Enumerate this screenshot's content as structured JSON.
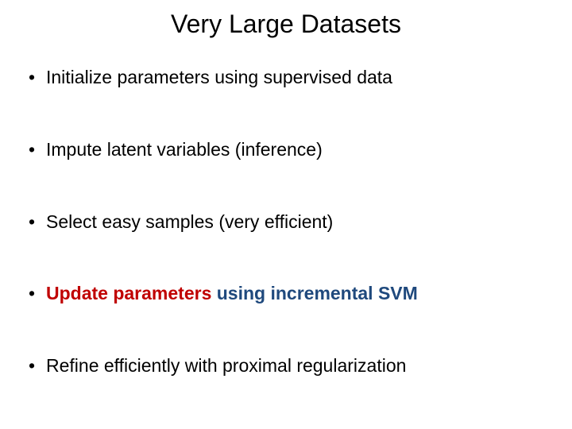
{
  "slide": {
    "title": "Very Large Datasets",
    "title_color": "#000000",
    "background_color": "#ffffff",
    "bullets": [
      {
        "segments": [
          {
            "text": "Initialize parameters using supervised data",
            "color": "#000000",
            "bold": false
          }
        ]
      },
      {
        "segments": [
          {
            "text": "Impute latent variables (inference)",
            "color": "#000000",
            "bold": false
          }
        ]
      },
      {
        "segments": [
          {
            "text": "Select easy samples (very efficient)",
            "color": "#000000",
            "bold": false
          }
        ]
      },
      {
        "segments": [
          {
            "text": "Update parameters",
            "color": "#c00000",
            "bold": true
          },
          {
            "text": " ",
            "color": "#000000",
            "bold": true
          },
          {
            "text": "using incremental SVM",
            "color": "#1f497d",
            "bold": true
          }
        ]
      },
      {
        "segments": [
          {
            "text": "Refine efficiently with proximal regularization",
            "color": "#000000",
            "bold": false
          }
        ]
      }
    ]
  }
}
